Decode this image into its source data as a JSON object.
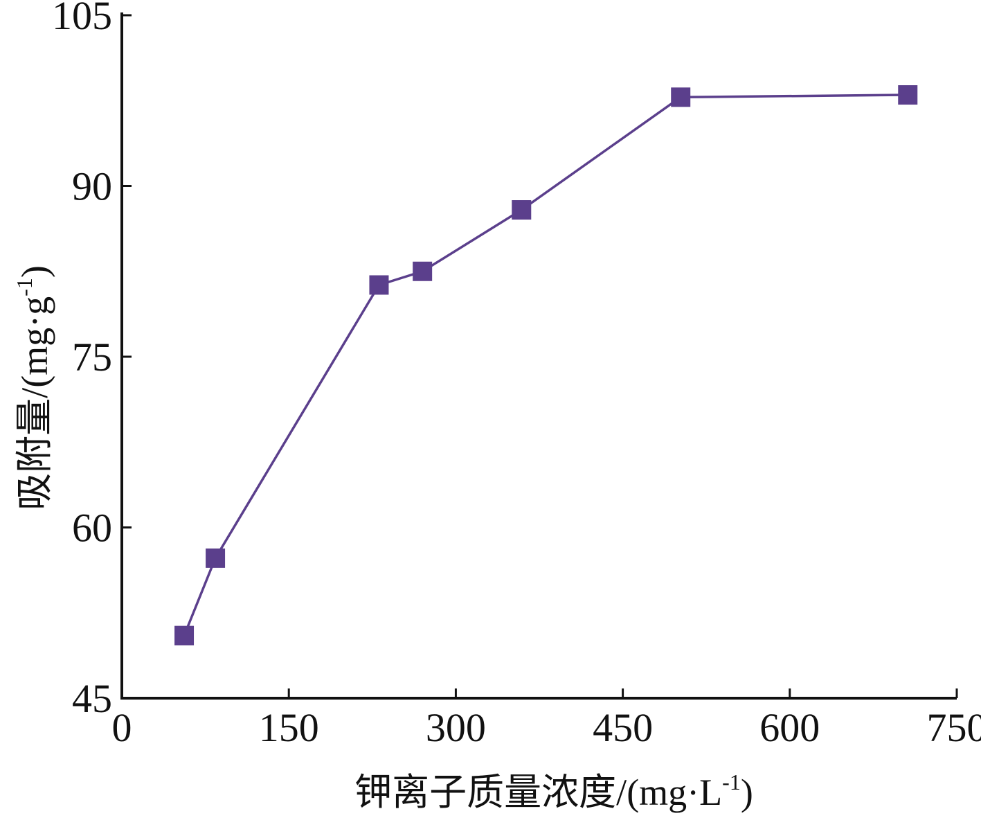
{
  "chart_data": {
    "type": "line",
    "title": "",
    "xlabel": {
      "main": "钾离子质量浓度/(mg·L",
      "sup": "-1",
      "close": ")"
    },
    "ylabel": {
      "main": "吸附量/(mg·g",
      "sup": "-1",
      "close": ")"
    },
    "xlim": [
      0,
      750
    ],
    "ylim": [
      45,
      105
    ],
    "xticks": [
      0,
      150,
      300,
      450,
      600,
      750
    ],
    "yticks": [
      45,
      60,
      75,
      90,
      105
    ],
    "xtick_labels": [
      "0",
      "150",
      "300",
      "450",
      "600",
      "750"
    ],
    "ytick_labels": [
      "45",
      "60",
      "75",
      "90",
      "105"
    ],
    "grid": false,
    "series": [
      {
        "marker": "square",
        "x": [
          56,
          84,
          231,
          270,
          359,
          502,
          706
        ],
        "y": [
          50.5,
          57.3,
          81.3,
          82.5,
          87.9,
          97.8,
          98.0
        ]
      }
    ],
    "colors": {
      "series": "#5B3F8C",
      "axis": "#111111"
    }
  }
}
